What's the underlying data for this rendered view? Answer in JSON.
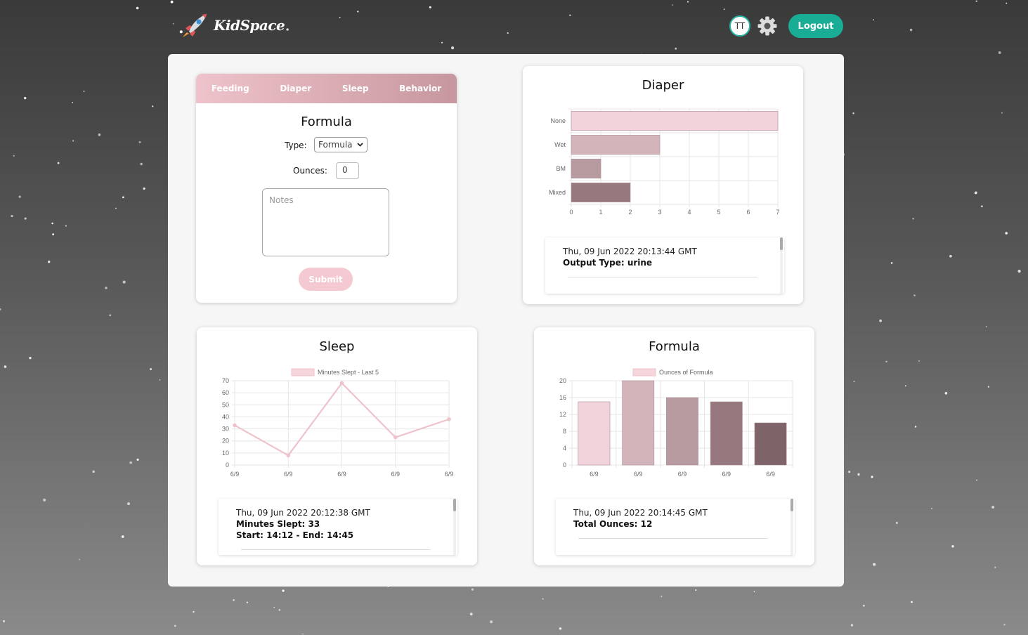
{
  "app": {
    "name": "KidSpace"
  },
  "header": {
    "avatar_initials": "TT",
    "logout_label": "Logout"
  },
  "form": {
    "tabs": [
      "Feeding",
      "Diaper",
      "Sleep",
      "Behavior"
    ],
    "title": "Formula",
    "type_label": "Type:",
    "type_value": "Formula",
    "ounces_label": "Ounces:",
    "ounces_value": "0",
    "notes_placeholder": "Notes",
    "submit_label": "Submit"
  },
  "diaper": {
    "title": "Diaper",
    "log": {
      "date": "Thu, 09 Jun 2022 20:13:44 GMT",
      "lines": [
        "Output Type: urine"
      ]
    },
    "chart_data": {
      "type": "bar",
      "orientation": "horizontal",
      "categories": [
        "None",
        "Wet",
        "BM",
        "Mixed"
      ],
      "values": [
        7,
        3,
        1,
        2
      ],
      "xlim": [
        0,
        7
      ],
      "xticks": [
        "0",
        "1",
        "2",
        "3",
        "4",
        "5",
        "6",
        "7"
      ],
      "colors": [
        "#f3d3db",
        "#d3b4bb",
        "#b89aa1",
        "#98787f"
      ],
      "grid": true
    }
  },
  "sleep": {
    "title": "Sleep",
    "log": {
      "date": "Thu, 09 Jun 2022 20:12:38 GMT",
      "lines": [
        "Minutes Slept: 33",
        "Start: 14:12 - End: 14:45"
      ]
    },
    "chart_data": {
      "type": "line",
      "series": [
        {
          "name": "Minutes Slept - Last 5",
          "values": [
            33,
            8,
            68,
            23,
            38
          ]
        }
      ],
      "categories": [
        "6/9",
        "6/9",
        "6/9",
        "6/9",
        "6/9"
      ],
      "ylim": [
        0,
        70
      ],
      "yticks": [
        "0",
        "10",
        "20",
        "30",
        "40",
        "50",
        "60",
        "70"
      ],
      "color": "#efc3cb",
      "grid": true,
      "legend": "top"
    }
  },
  "formula": {
    "title": "Formula",
    "log": {
      "date": "Thu, 09 Jun 2022 20:14:45 GMT",
      "lines": [
        "Total Ounces: 12"
      ]
    },
    "chart_data": {
      "type": "bar",
      "series": [
        {
          "name": "Ounces of Formula",
          "values": [
            15,
            20,
            16,
            15,
            10
          ]
        }
      ],
      "categories": [
        "6/9",
        "6/9",
        "6/9",
        "6/9",
        "6/9"
      ],
      "ylim": [
        0,
        20
      ],
      "yticks": [
        "0",
        "4",
        "8",
        "12",
        "16",
        "20"
      ],
      "colors": [
        "#f3d3db",
        "#d3b4bb",
        "#b89aa1",
        "#98787f",
        "#7e6369"
      ],
      "grid": true,
      "legend": "top"
    }
  }
}
